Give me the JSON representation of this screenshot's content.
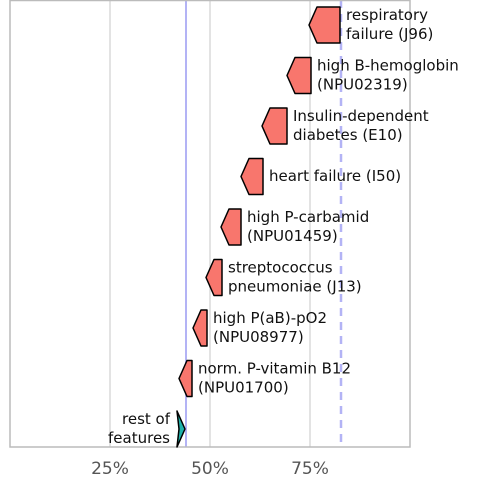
{
  "chart_data": {
    "type": "force",
    "xlim": [
      0,
      100
    ],
    "xticks": [
      {
        "value": 25,
        "label": "25%"
      },
      {
        "value": 50,
        "label": "50%"
      },
      {
        "value": 75,
        "label": "75%"
      }
    ],
    "base_value": 44,
    "prediction": 82.75,
    "positive_color": "#f8766d",
    "negative_color": "#1fb2aa",
    "features": [
      {
        "label": [
          "respiratory",
          "failure (J96)"
        ],
        "start": 74.75,
        "end": 82.5
      },
      {
        "label": [
          "high B-hemoglobin",
          "(NPU02319)"
        ],
        "start": 69.25,
        "end": 75.25
      },
      {
        "label": [
          "Insulin-dependent",
          "diabetes (E10)"
        ],
        "start": 63,
        "end": 69.25
      },
      {
        "label": [
          "heart failure (I50)"
        ],
        "start": 57.75,
        "end": 63.25
      },
      {
        "label": [
          "high P-carbamid",
          "(NPU01459)"
        ],
        "start": 52.75,
        "end": 57.75
      },
      {
        "label": [
          "streptococcus",
          "pneumoniae (J13)"
        ],
        "start": 49,
        "end": 53
      },
      {
        "label": [
          "high P(aB)-pO2",
          "(NPU08977)"
        ],
        "start": 45.75,
        "end": 49.25
      },
      {
        "label": [
          "norm. P-vitamin B12",
          "(NPU01700)"
        ],
        "start": 42.25,
        "end": 45.5
      },
      {
        "label": [
          "rest of",
          "features"
        ],
        "start": 41.75,
        "end": 43.75
      }
    ]
  }
}
